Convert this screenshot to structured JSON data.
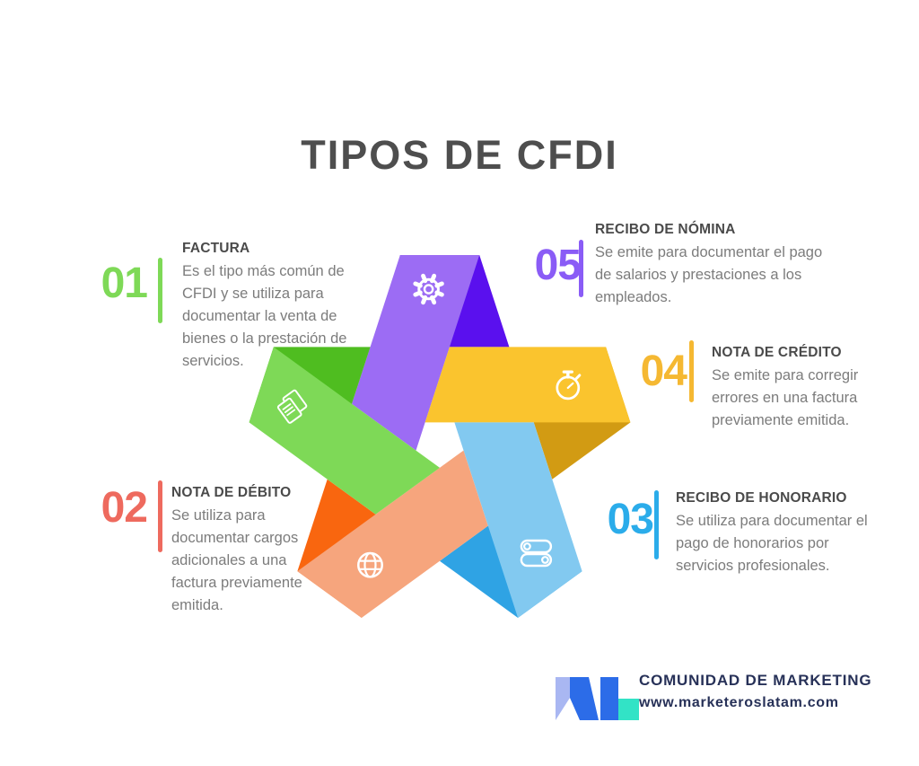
{
  "title": "TIPOS DE CFDI",
  "items": [
    {
      "id": "01",
      "title": "FACTURA",
      "desc": "Es el tipo más común de CFDI y se utiliza para documentar la venta de bienes o la prestación de servicios.",
      "color": "#7ed957"
    },
    {
      "id": "02",
      "title": "NOTA DE DÉBITO",
      "desc": "Se utiliza para documentar cargos adicionales a una factura previamente emitida.",
      "color": "#ee6a5e"
    },
    {
      "id": "03",
      "title": "RECIBO DE HONORARIO",
      "desc": "Se utiliza para documentar el pago de honorarios por servicios profesionales.",
      "color": "#2bacea"
    },
    {
      "id": "04",
      "title": "NOTA DE CRÉDITO",
      "desc": "Se emite para corregir errores en una factura previamente emitida.",
      "color": "#f5b832"
    },
    {
      "id": "05",
      "title": "RECIBO DE NÓMINA",
      "desc": "Se emite para documentar el pago de salarios y prestaciones a los empleados.",
      "color": "#8a5cf6"
    }
  ],
  "star": {
    "icon_color": "#ffffff",
    "ribbons": [
      {
        "name": "purple",
        "light": "#9c6cf4",
        "dark": "#5a10ee",
        "icon": "gear-icon"
      },
      {
        "name": "yellow",
        "light": "#fac42e",
        "dark": "#d29b13",
        "icon": "stopwatch-icon"
      },
      {
        "name": "blue",
        "light": "#82c9f0",
        "dark": "#2fa3e4",
        "icon": "toggles-icon"
      },
      {
        "name": "orange",
        "light": "#f6a57d",
        "dark": "#f9660f",
        "icon": "globe-icon"
      },
      {
        "name": "green",
        "light": "#7ed957",
        "dark": "#4fbd20",
        "icon": "document-icon"
      }
    ]
  },
  "footer": {
    "brand": "COMUNIDAD DE MARKETING",
    "website": "www.marketeroslatam.com",
    "logo_colors": {
      "lavender": "#a9b7f2",
      "blue": "#2c6ce8",
      "teal": "#32e3c6"
    }
  }
}
